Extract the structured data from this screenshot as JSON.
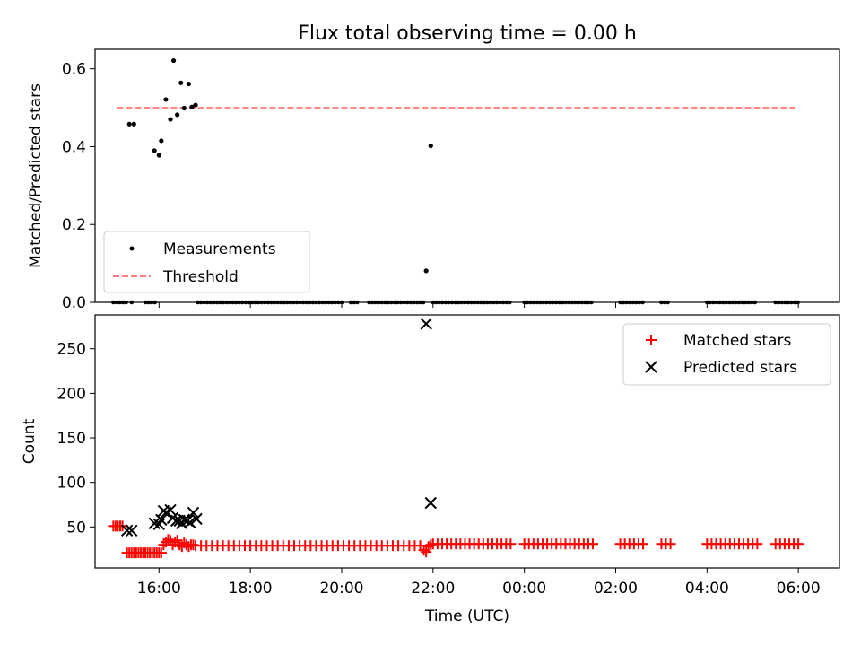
{
  "title": "Flux total observing time = 0.00 h",
  "chart_data": [
    {
      "type": "scatter",
      "ylabel": "Matched/Predicted stars",
      "xlim": [
        14.6,
        30.9
      ],
      "ylim": [
        0,
        0.65
      ],
      "yticks": [
        0.0,
        0.2,
        0.4,
        0.6
      ],
      "yticklabels": [
        "0.0",
        "0.2",
        "0.4",
        "0.6"
      ],
      "legend_position": "lower-left",
      "series": [
        {
          "name": "Measurements",
          "marker": "dot",
          "color": "#000000",
          "points": [
            [
              15.35,
              0.458
            ],
            [
              15.45,
              0.458
            ],
            [
              15.9,
              0.39
            ],
            [
              16.0,
              0.378
            ],
            [
              16.05,
              0.415
            ],
            [
              16.15,
              0.521
            ],
            [
              16.25,
              0.47
            ],
            [
              16.32,
              0.621
            ],
            [
              16.4,
              0.482
            ],
            [
              16.48,
              0.564
            ],
            [
              16.55,
              0.499
            ],
            [
              16.65,
              0.561
            ],
            [
              16.72,
              0.502
            ],
            [
              16.8,
              0.507
            ],
            [
              21.85,
              0.081
            ],
            [
              21.95,
              0.402
            ]
          ]
        },
        {
          "name": "Threshold",
          "style": "dashed",
          "color": "#ff7f7f",
          "points": [
            [
              15.08,
              0.5
            ],
            [
              29.92,
              0.5
            ]
          ]
        }
      ],
      "zero_segments": [
        [
          15.0,
          15.3
        ],
        [
          15.4,
          15.45
        ],
        [
          15.7,
          15.95
        ],
        [
          16.85,
          20.0
        ],
        [
          20.2,
          20.4
        ],
        [
          20.6,
          21.8
        ],
        [
          22.0,
          23.7
        ],
        [
          24.0,
          25.5
        ],
        [
          26.1,
          26.6
        ],
        [
          27.0,
          27.2
        ],
        [
          28.0,
          29.1
        ],
        [
          29.5,
          30.0
        ]
      ]
    },
    {
      "type": "scatter",
      "ylabel": "Count",
      "xlabel": "Time (UTC)",
      "xlim": [
        14.6,
        30.9
      ],
      "ylim": [
        4,
        288
      ],
      "yticks": [
        50,
        100,
        150,
        200,
        250
      ],
      "yticklabels": [
        "50",
        "100",
        "150",
        "200",
        "250"
      ],
      "xticks": [
        16,
        18,
        20,
        22,
        24,
        26,
        28,
        30
      ],
      "xticklabels": [
        "16:00",
        "18:00",
        "20:00",
        "22:00",
        "00:00",
        "02:00",
        "04:00",
        "06:00"
      ],
      "legend_position": "upper-right",
      "series": [
        {
          "name": "Matched stars",
          "marker": "plus",
          "color": "#ff0000",
          "points": [
            [
              15.0,
              51
            ],
            [
              15.05,
              51
            ],
            [
              15.1,
              51
            ],
            [
              15.15,
              51
            ],
            [
              15.2,
              51
            ],
            [
              15.3,
              21
            ],
            [
              15.35,
              21
            ],
            [
              15.4,
              21
            ],
            [
              15.45,
              21
            ],
            [
              15.5,
              21
            ],
            [
              15.55,
              21
            ],
            [
              15.6,
              21
            ],
            [
              15.65,
              21
            ],
            [
              15.7,
              21
            ],
            [
              15.75,
              21
            ],
            [
              15.8,
              21
            ],
            [
              15.85,
              21
            ],
            [
              15.9,
              21
            ],
            [
              15.95,
              21
            ],
            [
              16.0,
              21
            ],
            [
              16.05,
              21
            ],
            [
              16.1,
              30
            ],
            [
              16.15,
              33
            ],
            [
              16.2,
              36
            ],
            [
              16.25,
              35
            ],
            [
              16.3,
              30
            ],
            [
              16.35,
              33
            ],
            [
              16.4,
              35
            ],
            [
              16.45,
              30
            ],
            [
              16.5,
              28
            ],
            [
              16.55,
              32
            ],
            [
              16.6,
              30
            ],
            [
              16.65,
              28
            ],
            [
              16.7,
              30
            ],
            [
              16.75,
              30
            ],
            [
              21.8,
              24
            ],
            [
              21.85,
              22
            ],
            [
              21.9,
              28
            ],
            [
              21.95,
              30
            ]
          ],
          "runs": [
            [
              16.8,
              21.75,
              0.12,
              29
            ],
            [
              22.0,
              23.7,
              0.1,
              31
            ],
            [
              24.0,
              25.5,
              0.1,
              31
            ],
            [
              26.1,
              26.6,
              0.1,
              31
            ],
            [
              27.0,
              27.2,
              0.1,
              31
            ],
            [
              28.0,
              29.1,
              0.1,
              31
            ],
            [
              29.5,
              30.0,
              0.1,
              31
            ]
          ]
        },
        {
          "name": "Predicted stars",
          "marker": "x",
          "color": "#000000",
          "points": [
            [
              15.3,
              46
            ],
            [
              15.4,
              46
            ],
            [
              15.9,
              54
            ],
            [
              16.0,
              53
            ],
            [
              16.05,
              58
            ],
            [
              16.1,
              68
            ],
            [
              16.15,
              66
            ],
            [
              16.25,
              69
            ],
            [
              16.3,
              60
            ],
            [
              16.38,
              57
            ],
            [
              16.45,
              57
            ],
            [
              16.5,
              54
            ],
            [
              16.55,
              58
            ],
            [
              16.62,
              57
            ],
            [
              16.68,
              55
            ],
            [
              16.75,
              66
            ],
            [
              16.82,
              59
            ],
            [
              21.85,
              278
            ],
            [
              21.95,
              77
            ]
          ]
        }
      ]
    }
  ]
}
